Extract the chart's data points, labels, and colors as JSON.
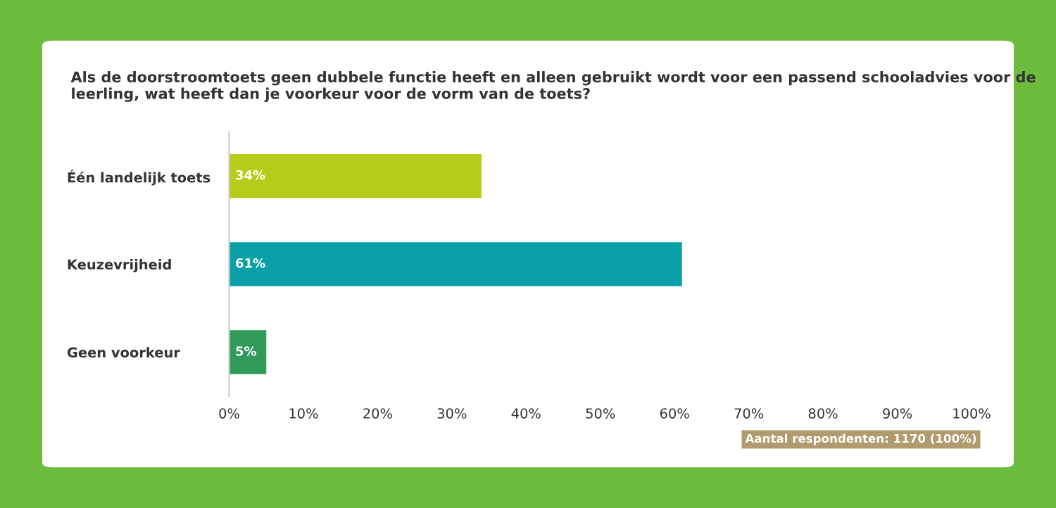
{
  "chart_data": {
    "type": "bar",
    "orientation": "horizontal",
    "title": "Als de doorstroomtoets geen dubbele functie heeft en alleen gebruikt wordt voor een passend schooladvies voor de leerling, wat heeft dan je voorkeur voor de vorm van de toets?",
    "categories": [
      "Één landelijk toets",
      "Keuzevrijheid",
      "Geen voorkeur"
    ],
    "values": [
      34,
      61,
      5
    ],
    "colors": [
      "#b5cc18",
      "#0aa0a8",
      "#2f9a5a"
    ],
    "value_labels": [
      "34%",
      "61%",
      "5%"
    ],
    "xlim": [
      0,
      100
    ],
    "xticks": [
      {
        "value": 0,
        "label": "0%"
      },
      {
        "value": 10,
        "label": "10%"
      },
      {
        "value": 20,
        "label": "20%"
      },
      {
        "value": 30,
        "label": "30%"
      },
      {
        "value": 40,
        "label": "40%"
      },
      {
        "value": 50,
        "label": "50%"
      },
      {
        "value": 60,
        "label": "60%"
      },
      {
        "value": 70,
        "label": "70%"
      },
      {
        "value": 80,
        "label": "80%"
      },
      {
        "value": 90,
        "label": "90%"
      },
      {
        "value": 100,
        "label": "100%"
      }
    ],
    "grid": false,
    "legend": false,
    "annotations": [
      "Aantal respondenten: 1170 (100%)"
    ]
  }
}
